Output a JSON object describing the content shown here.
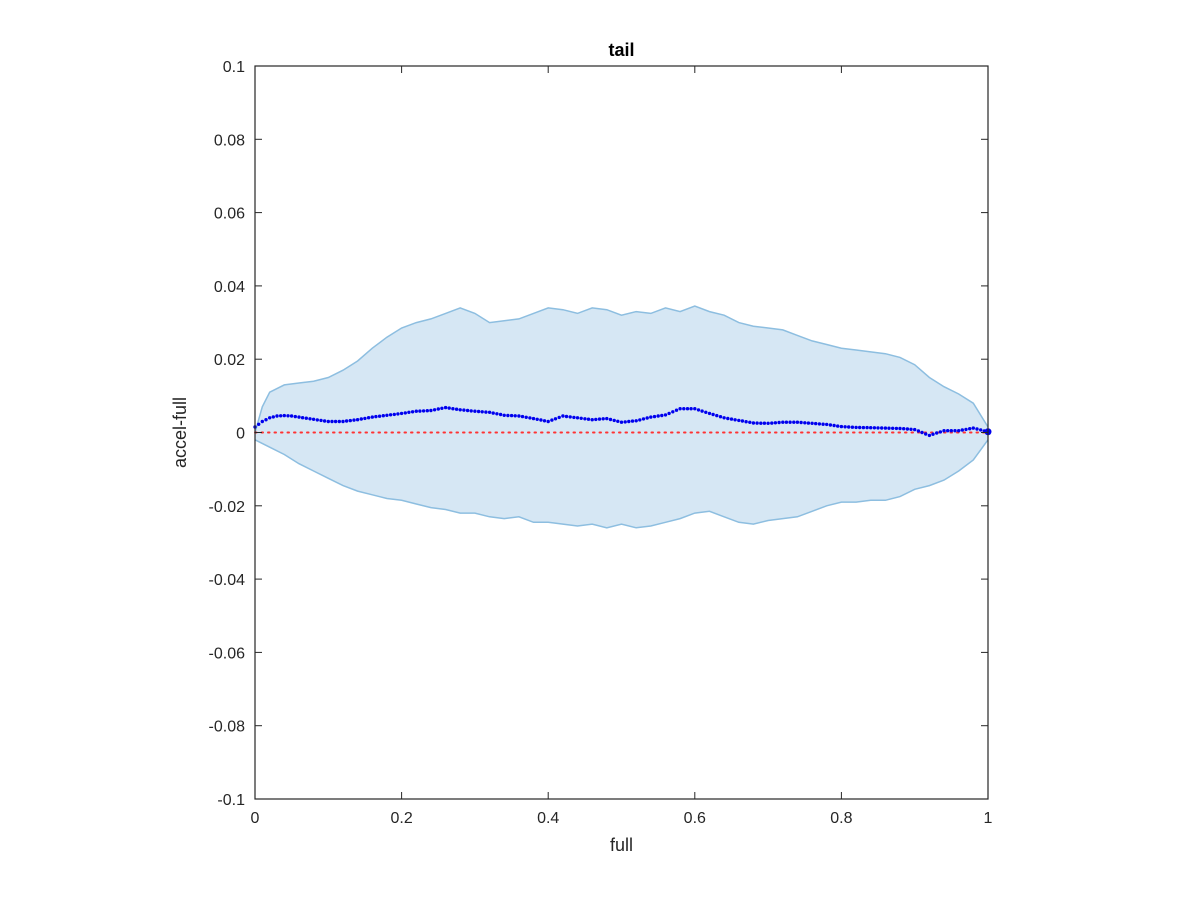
{
  "chart_data": {
    "type": "line",
    "title": "tail",
    "xlabel": "full",
    "ylabel": "accel-full",
    "xlim": [
      0,
      1
    ],
    "ylim": [
      -0.1,
      0.1
    ],
    "x_ticks": [
      0,
      0.2,
      0.4,
      0.6,
      0.8,
      1
    ],
    "x_tick_labels": [
      "0",
      "0.2",
      "0.4",
      "0.6",
      "0.8",
      "1"
    ],
    "y_ticks": [
      -0.1,
      -0.08,
      -0.06,
      -0.04,
      -0.02,
      0,
      0.02,
      0.04,
      0.06,
      0.08,
      0.1
    ],
    "y_tick_labels": [
      "-0.1",
      "-0.08",
      "-0.06",
      "-0.04",
      "-0.02",
      "0",
      "0.02",
      "0.04",
      "0.06",
      "0.08",
      "0.1"
    ],
    "grid": false,
    "legend": "none",
    "colors": {
      "band_fill": "#d6e7f4",
      "band_edge": "#8dbee0",
      "mean": "#0000ee",
      "reference": "#ff3333",
      "axis": "#262626"
    },
    "band_upper": {
      "x": [
        0,
        0.01,
        0.02,
        0.04,
        0.06,
        0.08,
        0.1,
        0.12,
        0.14,
        0.16,
        0.18,
        0.2,
        0.22,
        0.24,
        0.26,
        0.28,
        0.3,
        0.32,
        0.34,
        0.36,
        0.38,
        0.4,
        0.42,
        0.44,
        0.46,
        0.48,
        0.5,
        0.52,
        0.54,
        0.56,
        0.58,
        0.6,
        0.62,
        0.64,
        0.66,
        0.68,
        0.7,
        0.72,
        0.74,
        0.76,
        0.78,
        0.8,
        0.82,
        0.84,
        0.86,
        0.88,
        0.9,
        0.92,
        0.94,
        0.96,
        0.98,
        1
      ],
      "y": [
        0.0,
        0.007,
        0.011,
        0.013,
        0.0135,
        0.014,
        0.015,
        0.017,
        0.0195,
        0.023,
        0.026,
        0.0285,
        0.03,
        0.031,
        0.0325,
        0.034,
        0.0325,
        0.03,
        0.0305,
        0.031,
        0.0325,
        0.034,
        0.0335,
        0.0325,
        0.034,
        0.0335,
        0.032,
        0.033,
        0.0325,
        0.034,
        0.033,
        0.0345,
        0.033,
        0.032,
        0.03,
        0.029,
        0.0285,
        0.028,
        0.0265,
        0.025,
        0.024,
        0.023,
        0.0225,
        0.022,
        0.0215,
        0.0205,
        0.0185,
        0.015,
        0.0125,
        0.0105,
        0.008,
        0.0015
      ]
    },
    "band_lower": {
      "x": [
        0,
        0.02,
        0.04,
        0.06,
        0.08,
        0.1,
        0.12,
        0.14,
        0.16,
        0.18,
        0.2,
        0.22,
        0.24,
        0.26,
        0.28,
        0.3,
        0.32,
        0.34,
        0.36,
        0.38,
        0.4,
        0.42,
        0.44,
        0.46,
        0.48,
        0.5,
        0.52,
        0.54,
        0.56,
        0.58,
        0.6,
        0.62,
        0.64,
        0.66,
        0.68,
        0.7,
        0.72,
        0.74,
        0.76,
        0.78,
        0.8,
        0.82,
        0.84,
        0.86,
        0.88,
        0.9,
        0.92,
        0.94,
        0.96,
        0.98,
        1
      ],
      "y": [
        -0.002,
        -0.004,
        -0.006,
        -0.0085,
        -0.0105,
        -0.0125,
        -0.0145,
        -0.016,
        -0.017,
        -0.018,
        -0.0185,
        -0.0195,
        -0.0205,
        -0.021,
        -0.022,
        -0.022,
        -0.023,
        -0.0235,
        -0.023,
        -0.0245,
        -0.0245,
        -0.025,
        -0.0255,
        -0.025,
        -0.026,
        -0.025,
        -0.026,
        -0.0255,
        -0.0245,
        -0.0235,
        -0.022,
        -0.0215,
        -0.023,
        -0.0245,
        -0.025,
        -0.024,
        -0.0235,
        -0.023,
        -0.0215,
        -0.02,
        -0.019,
        -0.019,
        -0.0185,
        -0.0185,
        -0.0175,
        -0.0155,
        -0.0145,
        -0.013,
        -0.0105,
        -0.0075,
        -0.002
      ]
    },
    "mean": {
      "x": [
        0,
        0.01,
        0.02,
        0.03,
        0.04,
        0.05,
        0.06,
        0.08,
        0.1,
        0.12,
        0.14,
        0.16,
        0.18,
        0.2,
        0.22,
        0.24,
        0.26,
        0.28,
        0.3,
        0.32,
        0.34,
        0.36,
        0.38,
        0.4,
        0.42,
        0.44,
        0.46,
        0.48,
        0.5,
        0.52,
        0.54,
        0.56,
        0.58,
        0.6,
        0.62,
        0.64,
        0.66,
        0.68,
        0.7,
        0.72,
        0.74,
        0.76,
        0.78,
        0.8,
        0.82,
        0.84,
        0.86,
        0.88,
        0.9,
        0.92,
        0.94,
        0.96,
        0.98,
        1
      ],
      "y": [
        0.0015,
        0.003,
        0.004,
        0.0045,
        0.0046,
        0.0045,
        0.0042,
        0.0036,
        0.003,
        0.003,
        0.0035,
        0.0042,
        0.0047,
        0.0052,
        0.0058,
        0.006,
        0.0068,
        0.0062,
        0.0058,
        0.0055,
        0.0047,
        0.0045,
        0.0038,
        0.003,
        0.0045,
        0.004,
        0.0035,
        0.0038,
        0.0028,
        0.0032,
        0.0042,
        0.0048,
        0.0065,
        0.0065,
        0.0052,
        0.004,
        0.0033,
        0.0026,
        0.0025,
        0.0028,
        0.0028,
        0.0025,
        0.0022,
        0.0016,
        0.0014,
        0.0013,
        0.0012,
        0.0011,
        0.0008,
        -0.0008,
        0.0005,
        0.0005,
        0.0012,
        0.0002
      ]
    },
    "reference_line": {
      "y": 0
    }
  }
}
